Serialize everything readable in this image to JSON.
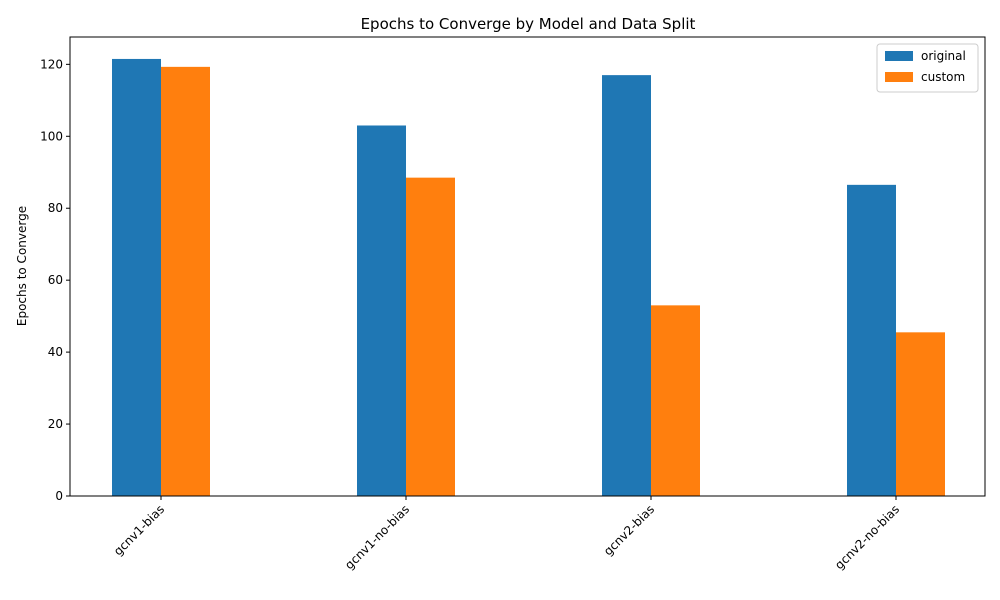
{
  "chart_data": {
    "type": "bar",
    "title": "Epochs to Converge by Model and Data Split",
    "xlabel": "",
    "ylabel": "Epochs to Converge",
    "categories": [
      "gcnv1-bias",
      "gcnv1-no-bias",
      "gcnv2-bias",
      "gcnv2-no-bias"
    ],
    "series": [
      {
        "name": "original",
        "color": "#1f77b4",
        "values": [
          121.5,
          103.0,
          117.0,
          86.5
        ]
      },
      {
        "name": "custom",
        "color": "#ff7f0e",
        "values": [
          119.3,
          88.5,
          53.0,
          45.5
        ]
      }
    ],
    "ylim": [
      0,
      127.6
    ],
    "yticks": [
      0,
      20,
      40,
      60,
      80,
      100,
      120
    ],
    "grid": false,
    "legend_position": "top-right",
    "xtick_rotation": 45
  }
}
